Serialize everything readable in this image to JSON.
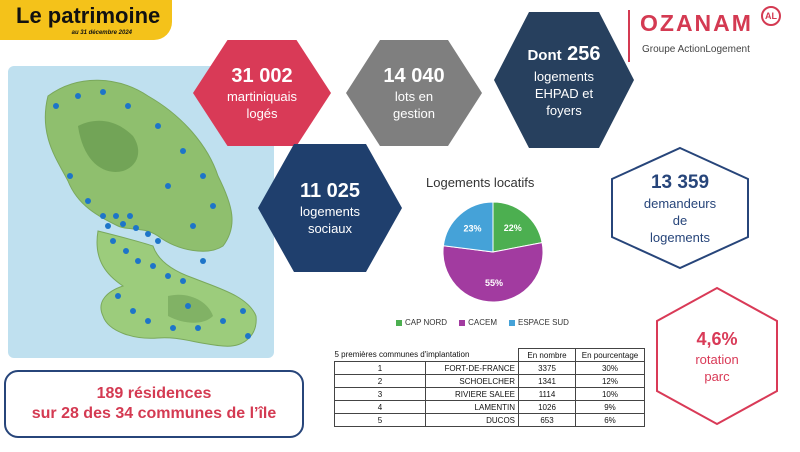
{
  "header": {
    "title": "Le patrimoine",
    "date": "au 31 décembre 2024"
  },
  "logo": {
    "brand": "OZANAM",
    "badge": "AL",
    "subtitle": "Groupe ActionLogement"
  },
  "stats": {
    "loges": {
      "value": "31 002",
      "label1": "martiniquais",
      "label2": "logés",
      "color": "#d93a57"
    },
    "lots": {
      "value": "14 040",
      "label1": "lots en",
      "label2": "gestion",
      "color": "#7f7f7f"
    },
    "ehpad": {
      "prefix": "Dont",
      "value": "256",
      "label1": "logements",
      "label2": "EHPAD et",
      "label3": "foyers",
      "color": "#27405e"
    },
    "sociaux": {
      "value": "11 025",
      "label1": "logements",
      "label2": "sociaux",
      "color": "#1f3f6d"
    },
    "demandeurs": {
      "value": "13 359",
      "label1": "demandeurs",
      "label2": "de",
      "label3": "logements",
      "color": "#27457a"
    },
    "rotation": {
      "value": "4,6%",
      "label1": "rotation",
      "label2": "parc",
      "color": "#d93a57"
    }
  },
  "residences": {
    "line1": "189 résidences",
    "line2": "sur 28 des 34 communes de l’île"
  },
  "chart_data": {
    "type": "pie",
    "title": "Logements locatifs",
    "categories": [
      "CAP NORD",
      "CACEM",
      "ESPACE SUD"
    ],
    "values": [
      22,
      55,
      23
    ],
    "labels": [
      "22%",
      "55%",
      "23%"
    ],
    "colors": [
      "#4caf50",
      "#a23ba0",
      "#45a2d8"
    ],
    "legend": "bottom"
  },
  "table": {
    "caption": "5 premières communes d'implantation",
    "headers": [
      "En nombre",
      "En pourcentage"
    ],
    "rows": [
      {
        "rank": "1",
        "commune": "FORT-DE-FRANCE",
        "nombre": "3375",
        "pct": "30%"
      },
      {
        "rank": "2",
        "commune": "SCHOELCHER",
        "nombre": "1341",
        "pct": "12%"
      },
      {
        "rank": "3",
        "commune": "RIVIERE SALEE",
        "nombre": "1114",
        "pct": "10%"
      },
      {
        "rank": "4",
        "commune": "LAMENTIN",
        "nombre": "1026",
        "pct": "9%"
      },
      {
        "rank": "5",
        "commune": "DUCOS",
        "nombre": "653",
        "pct": "6%"
      }
    ]
  }
}
